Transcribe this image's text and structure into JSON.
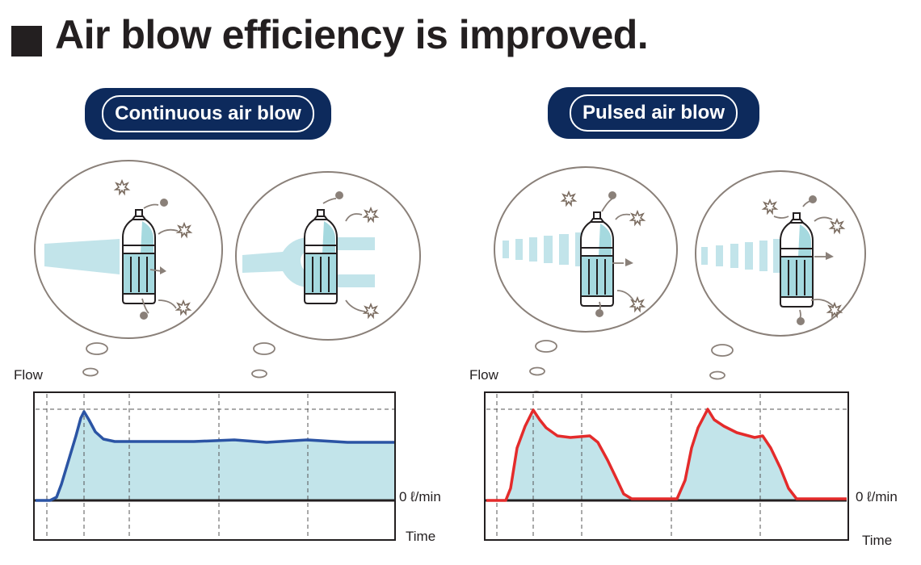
{
  "title": "Air blow efficiency is improved.",
  "panels": [
    {
      "label": "Continuous air blow",
      "y_axis_label": "Flow",
      "zero_label": "0 ℓ/min",
      "x_axis_label": "Time"
    },
    {
      "label": "Pulsed air blow",
      "y_axis_label": "Flow",
      "zero_label": "0 ℓ/min",
      "x_axis_label": "Time"
    }
  ],
  "colors": {
    "navy": "#0d2a5c",
    "continuous_line": "#2b54a4",
    "pulsed_line": "#e42b2b",
    "fill": "#c2e4ea",
    "bubble_outline": "#8a8079",
    "bottle_fill": "#a5d9df"
  },
  "icons": [
    "bottle-icon",
    "dust-particle-icon",
    "air-stream-icon",
    "thought-bubble-icon"
  ]
}
